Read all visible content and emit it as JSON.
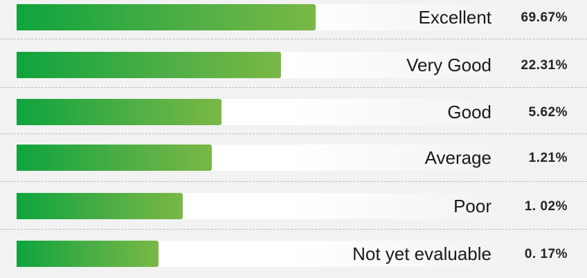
{
  "chart_data": {
    "type": "bar",
    "orientation": "horizontal",
    "categories": [
      "Excellent",
      "Very Good",
      "Good",
      "Average",
      "Poor",
      "Not yet evaluable"
    ],
    "values": [
      69.67,
      22.31,
      5.62,
      1.21,
      1.02,
      0.17
    ],
    "value_labels": [
      "69.67%",
      "22.31%",
      "5.62%",
      "1.21%",
      "1. 02%",
      "0. 17%"
    ],
    "title": "",
    "xlabel": "",
    "ylabel": "",
    "grid": false,
    "colors": {
      "bar_start": "#0fa43d",
      "bar_end": "#7ab845",
      "track": "#ffffff",
      "background": "#f2f2f2",
      "divider": "#b8b8b8"
    }
  }
}
